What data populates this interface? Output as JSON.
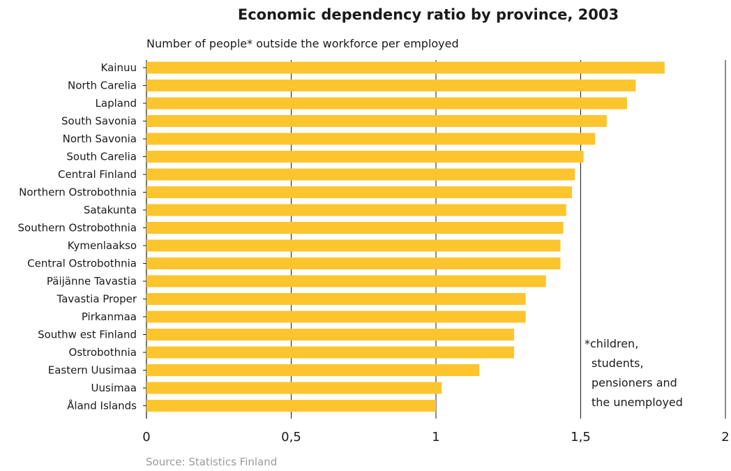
{
  "chart_data": {
    "type": "bar",
    "orientation": "horizontal",
    "title": "Economic dependency ratio by province, 2003",
    "subtitle": "Number of people* outside the workforce per employed",
    "categories": [
      "Kainuu",
      "North Carelia",
      "Lapland",
      "South Savonia",
      "North Savonia",
      "South Carelia",
      "Central Finland",
      "Northern Ostrobothnia",
      "Satakunta",
      "Southern Ostrobothnia",
      "Kymenlaakso",
      "Central Ostrobothnia",
      "Päijänne Tavastia",
      "Tavastia Proper",
      "Pirkanmaa",
      "Southw est Finland",
      "Ostrobothnia",
      "Eastern Uusimaa",
      "Uusimaa",
      "Åland Islands"
    ],
    "values": [
      1.79,
      1.69,
      1.66,
      1.59,
      1.55,
      1.51,
      1.48,
      1.47,
      1.45,
      1.44,
      1.43,
      1.43,
      1.38,
      1.31,
      1.31,
      1.27,
      1.27,
      1.15,
      1.02,
      1.0
    ],
    "xlim": [
      0,
      2
    ],
    "x_ticks": [
      0,
      0.5,
      1,
      1.5,
      2
    ],
    "x_tick_labels": [
      "0",
      "0,5",
      "1",
      "1,5",
      "2"
    ],
    "grid": "vertical",
    "bar_color": "#fcc52d",
    "note_lines": [
      "*children,",
      "students,",
      "pensioners and",
      "the unemployed"
    ],
    "source": "Source: Statistics Finland"
  }
}
